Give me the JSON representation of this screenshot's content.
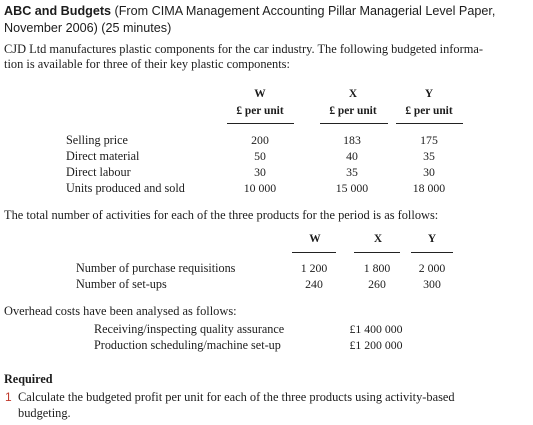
{
  "title": {
    "bold": "ABC and Budgets",
    "rest_line1": " (From CIMA Management Accounting Pillar Managerial Level Paper,",
    "line2": "November 2006) (25 minutes)"
  },
  "intro": {
    "line1": "CJD Ltd manufactures plastic components for the car industry. The following budgeted informa-",
    "line2": "tion is available for three of their key plastic components:"
  },
  "table1": {
    "columns": [
      {
        "name": "W",
        "unit": "£ per unit"
      },
      {
        "name": "X",
        "unit": "£ per unit"
      },
      {
        "name": "Y",
        "unit": "£ per unit"
      }
    ],
    "rows": [
      {
        "label": "Selling price",
        "values": [
          "200",
          "183",
          "175"
        ]
      },
      {
        "label": "Direct material",
        "values": [
          "50",
          "40",
          "35"
        ]
      },
      {
        "label": "Direct labour",
        "values": [
          "30",
          "35",
          "30"
        ]
      },
      {
        "label": "Units produced and sold",
        "values": [
          "10 000",
          "15 000",
          "18 000"
        ]
      }
    ]
  },
  "activities_intro": "The total number of activities for each of the three products for the period is as follows:",
  "table2": {
    "columns": [
      "W",
      "X",
      "Y"
    ],
    "rows": [
      {
        "label": "Number of purchase requisitions",
        "values": [
          "1 200",
          "1 800",
          "2 000"
        ]
      },
      {
        "label": "Number of set-ups",
        "values": [
          "240",
          "260",
          "300"
        ]
      }
    ]
  },
  "overhead_intro": "Overhead costs have been analysed as follows:",
  "overheads": [
    {
      "label": "Receiving/inspecting quality assurance",
      "value": "£1 400 000"
    },
    {
      "label": "Production scheduling/machine set-up",
      "value": "£1 200 000"
    }
  ],
  "required": {
    "heading": "Required",
    "items": [
      {
        "number": "1",
        "line1": "Calculate the budgeted profit per unit for each of the three products using activity-based",
        "line2": "budgeting."
      }
    ]
  },
  "colors": {
    "accent_number": "#c0392b",
    "text": "#1c1c1c"
  }
}
